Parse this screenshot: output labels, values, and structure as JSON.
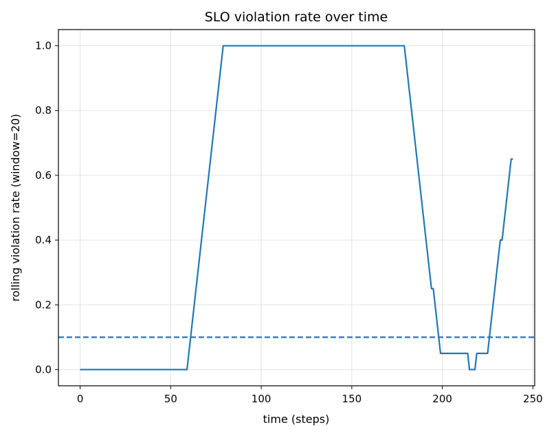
{
  "chart_data": {
    "type": "line",
    "title": "SLO violation rate over time",
    "xlabel": "time (steps)",
    "ylabel": "rolling violation rate (window=20)",
    "xlim": [
      -12,
      251
    ],
    "ylim": [
      -0.05,
      1.05
    ],
    "xticks": [
      0,
      50,
      100,
      150,
      200,
      250
    ],
    "xtick_labels": [
      "0",
      "50",
      "100",
      "150",
      "200",
      "250"
    ],
    "yticks": [
      0.0,
      0.2,
      0.4,
      0.6,
      0.8,
      1.0
    ],
    "ytick_labels": [
      "0.0",
      "0.2",
      "0.4",
      "0.6",
      "0.8",
      "1.0"
    ],
    "grid": true,
    "series": [
      {
        "style": "solid",
        "color": "#1f77b4",
        "x": [
          0,
          59,
          79,
          179,
          194,
          195,
          199,
          214,
          215,
          218,
          219,
          225,
          232,
          233,
          238,
          239
        ],
        "y": [
          0.0,
          0.0,
          1.0,
          1.0,
          0.25,
          0.25,
          0.05,
          0.05,
          0.0,
          0.0,
          0.05,
          0.05,
          0.4,
          0.4,
          0.65,
          0.65
        ]
      },
      {
        "style": "dashed",
        "color": "#1f77b4",
        "x": [
          -12,
          251
        ],
        "y": [
          0.1,
          0.1
        ]
      }
    ]
  }
}
